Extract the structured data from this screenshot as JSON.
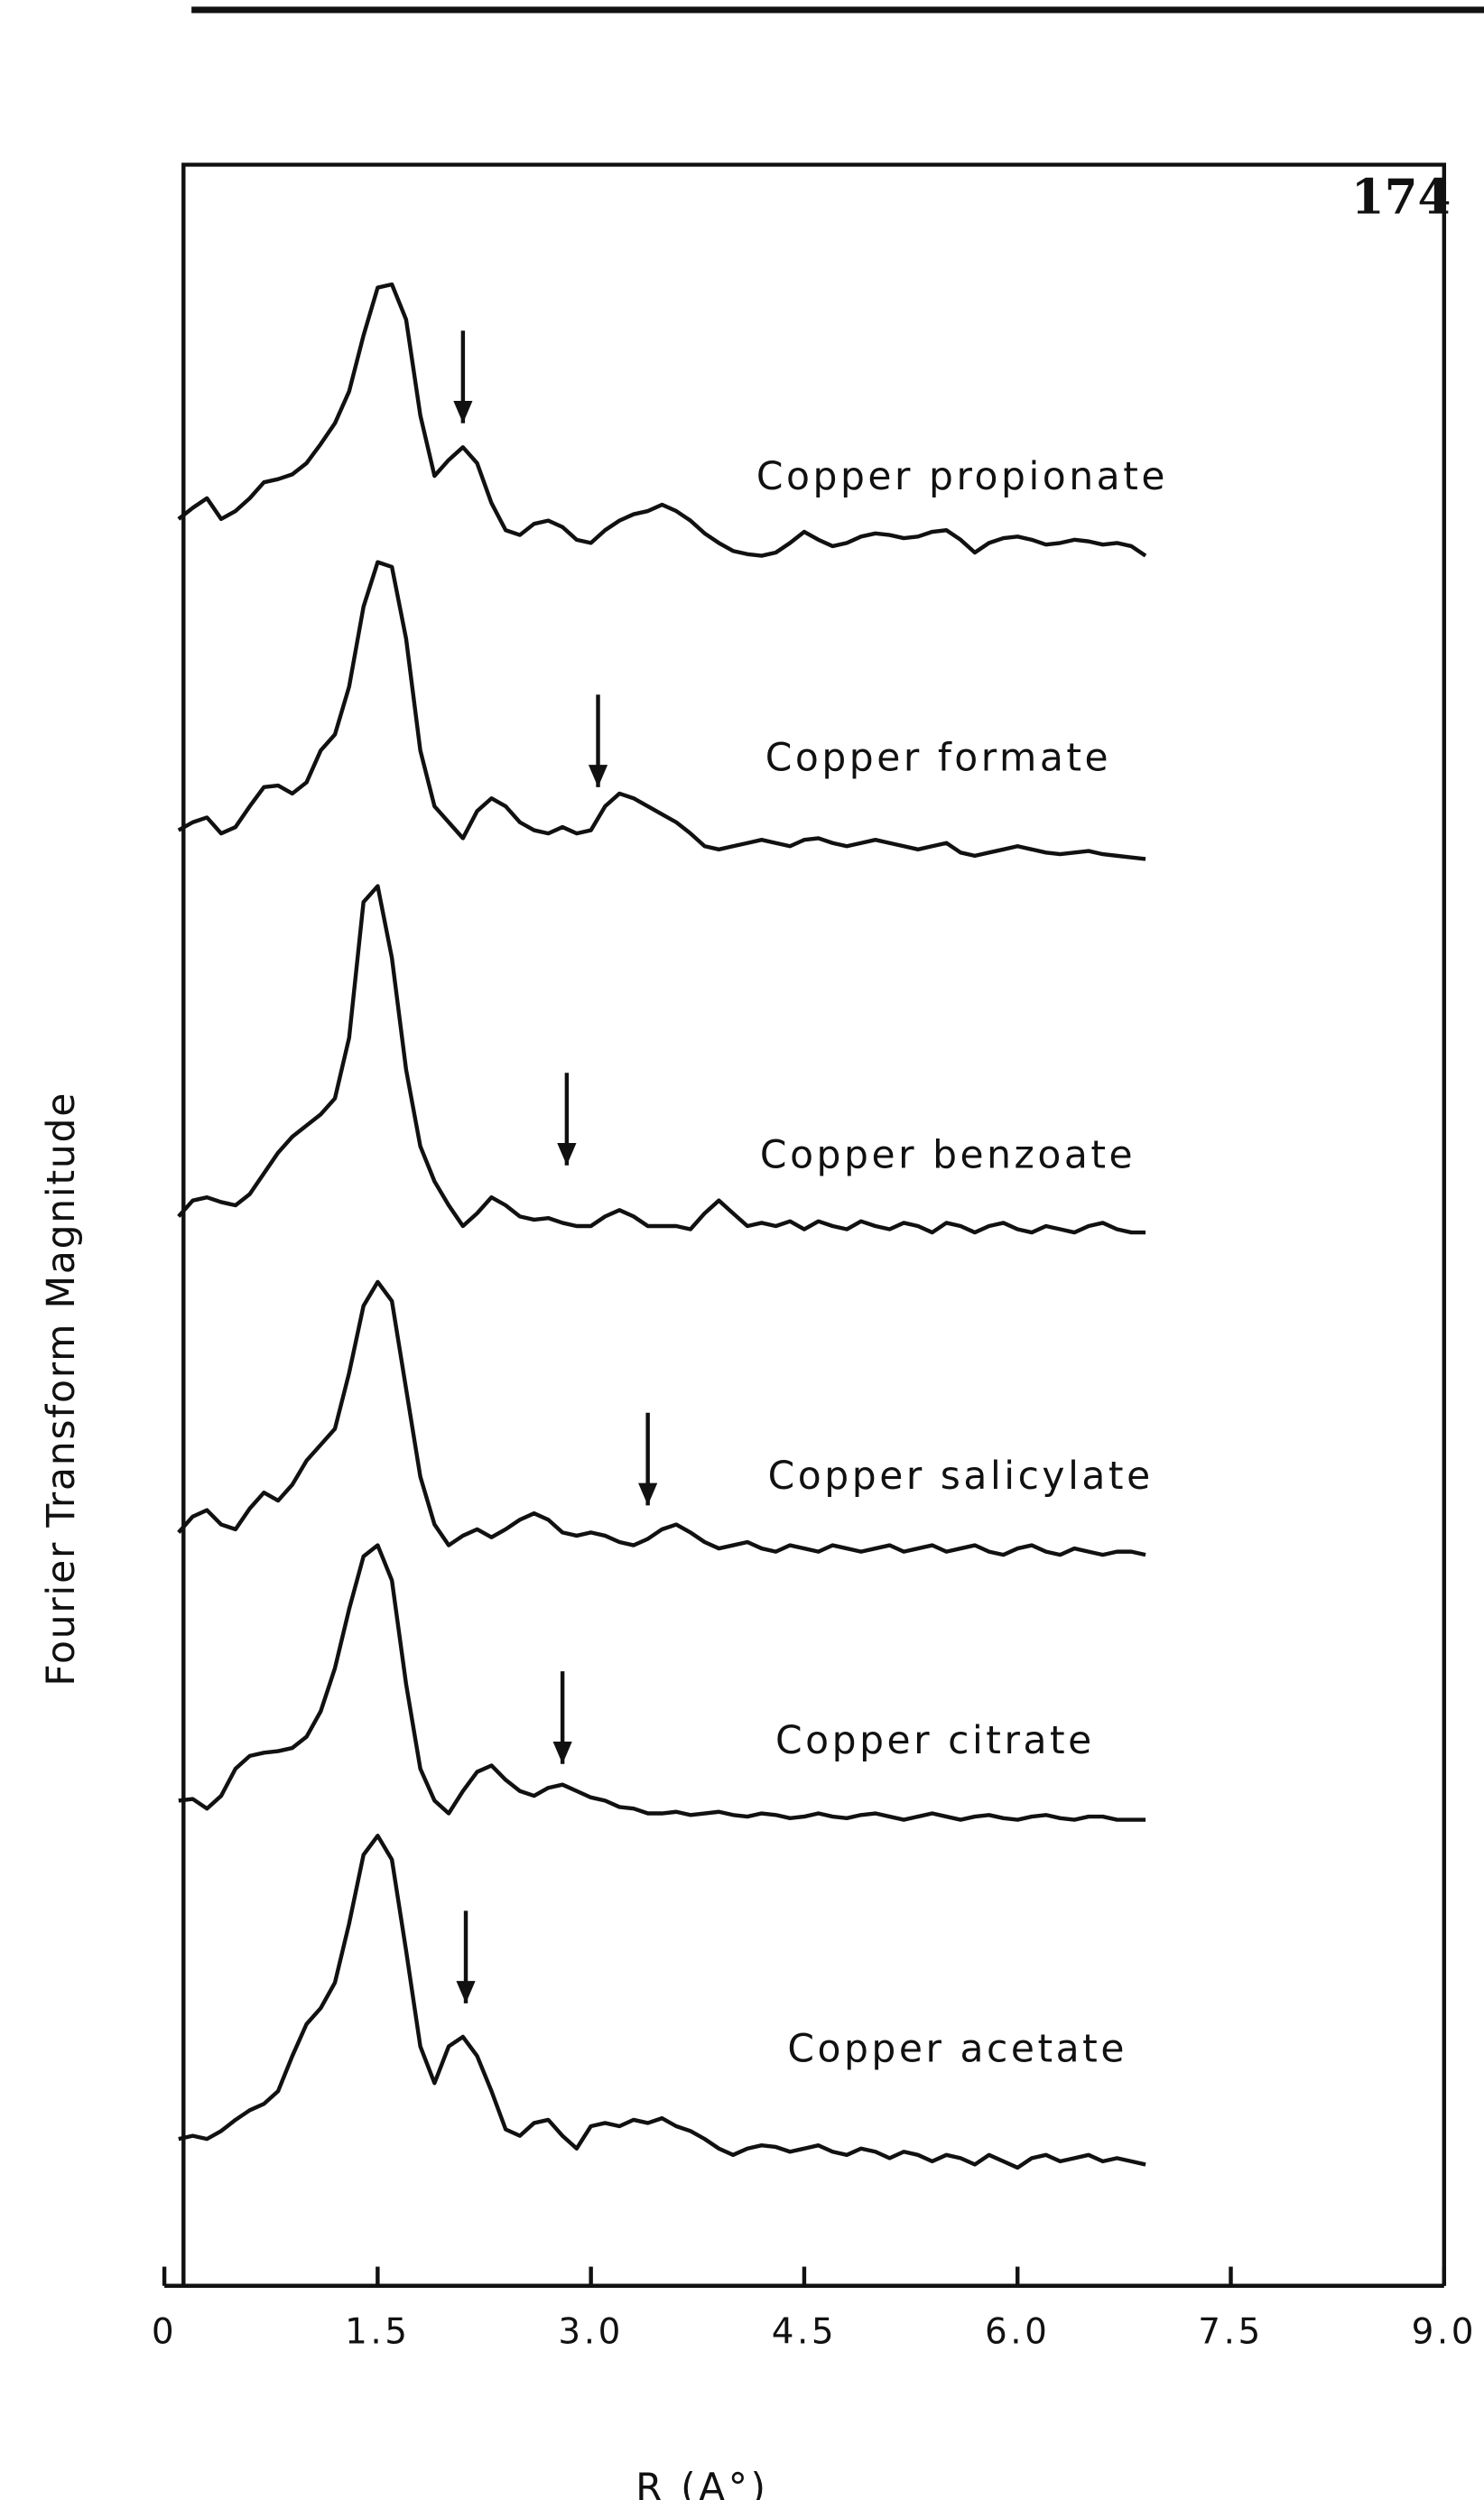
{
  "page_number": "174",
  "chart_data": {
    "type": "line",
    "ylabel": "Fourier Transform Magnitude",
    "xlabel": "R (A°)",
    "xlim": [
      0,
      9
    ],
    "ylim": [
      0,
      1329
    ],
    "xticks": [
      0,
      1.5,
      {
        "value": 3,
        "label": "3.0"
      },
      4.5,
      {
        "value": 6,
        "label": "6.0"
      },
      7.5,
      {
        "value": 9,
        "label": "9.0"
      }
    ],
    "color": "#111111",
    "x": [
      0.1,
      0.2,
      0.3,
      0.4,
      0.5,
      0.6,
      0.7,
      0.8,
      0.9,
      1.0,
      1.1,
      1.2,
      1.3,
      1.4,
      1.5,
      1.6,
      1.7,
      1.8,
      1.9,
      2.0,
      2.1,
      2.2,
      2.3,
      2.4,
      2.5,
      2.6,
      2.7,
      2.8,
      2.9,
      3.0,
      3.1,
      3.2,
      3.3,
      3.4,
      3.5,
      3.6,
      3.7,
      3.8,
      3.9,
      4.0,
      4.1,
      4.2,
      4.3,
      4.4,
      4.5,
      4.6,
      4.7,
      4.8,
      4.9,
      5.0,
      5.1,
      5.2,
      5.3,
      5.4,
      5.5,
      5.6,
      5.7,
      5.8,
      5.9,
      6.0,
      6.1,
      6.2,
      6.3,
      6.4,
      6.5,
      6.6,
      6.7,
      6.8,
      6.9
    ],
    "series": [
      {
        "name": "Copper propionate",
        "arrow_x": 2.1,
        "arrow_y": 1167,
        "values": [
          1107,
          1114,
          1120,
          1107,
          1112,
          1120,
          1130,
          1132,
          1135,
          1142,
          1154,
          1167,
          1187,
          1222,
          1252,
          1254,
          1232,
          1172,
          1134,
          1144,
          1152,
          1142,
          1117,
          1100,
          1097,
          1104,
          1106,
          1102,
          1094,
          1092,
          1100,
          1106,
          1110,
          1112,
          1116,
          1112,
          1106,
          1098,
          1092,
          1087,
          1085,
          1084,
          1086,
          1092,
          1099,
          1094,
          1090,
          1092,
          1096,
          1098,
          1097,
          1095,
          1096,
          1099,
          1100,
          1094,
          1086,
          1092,
          1095,
          1096,
          1094,
          1091,
          1092,
          1094,
          1093,
          1091,
          1092,
          1090,
          1084
        ]
      },
      {
        "name": "Copper formate",
        "arrow_x": 3.05,
        "arrow_y": 939,
        "values": [
          912,
          917,
          920,
          910,
          914,
          927,
          939,
          940,
          935,
          942,
          962,
          972,
          1002,
          1052,
          1080,
          1077,
          1032,
          962,
          927,
          917,
          907,
          924,
          932,
          927,
          917,
          912,
          910,
          914,
          910,
          912,
          927,
          935,
          932,
          927,
          922,
          917,
          910,
          902,
          900,
          902,
          904,
          906,
          904,
          902,
          906,
          907,
          904,
          902,
          904,
          906,
          904,
          902,
          900,
          902,
          904,
          898,
          896,
          898,
          900,
          902,
          900,
          898,
          897,
          898,
          899,
          897,
          896,
          895,
          894
        ]
      },
      {
        "name": "Copper benzoate",
        "arrow_x": 2.83,
        "arrow_y": 702,
        "values": [
          670,
          680,
          682,
          679,
          677,
          684,
          697,
          710,
          720,
          727,
          734,
          744,
          782,
          867,
          877,
          832,
          762,
          714,
          692,
          677,
          664,
          672,
          682,
          677,
          670,
          668,
          669,
          666,
          664,
          664,
          670,
          674,
          670,
          664,
          664,
          664,
          662,
          672,
          680,
          672,
          664,
          666,
          664,
          667,
          662,
          667,
          664,
          662,
          667,
          664,
          662,
          666,
          664,
          660,
          666,
          664,
          660,
          664,
          666,
          662,
          660,
          664,
          662,
          660,
          664,
          666,
          662,
          660,
          660
        ]
      },
      {
        "name": "Copper salicylate",
        "arrow_x": 3.4,
        "arrow_y": 489,
        "values": [
          472,
          482,
          486,
          477,
          474,
          487,
          497,
          492,
          502,
          517,
          527,
          537,
          572,
          614,
          629,
          617,
          562,
          507,
          477,
          464,
          470,
          474,
          469,
          474,
          480,
          484,
          480,
          472,
          470,
          472,
          470,
          466,
          464,
          468,
          474,
          477,
          472,
          466,
          462,
          464,
          466,
          462,
          460,
          464,
          462,
          460,
          464,
          462,
          460,
          462,
          464,
          460,
          462,
          464,
          460,
          462,
          464,
          460,
          458,
          462,
          464,
          460,
          458,
          462,
          460,
          458,
          460,
          460,
          458
        ]
      },
      {
        "name": "Copper citrate",
        "arrow_x": 2.8,
        "arrow_y": 327,
        "values": [
          304,
          305,
          299,
          307,
          324,
          332,
          334,
          335,
          337,
          344,
          360,
          387,
          424,
          457,
          464,
          442,
          377,
          324,
          304,
          296,
          310,
          322,
          326,
          317,
          310,
          307,
          312,
          314,
          310,
          306,
          304,
          300,
          299,
          296,
          296,
          297,
          295,
          296,
          297,
          295,
          294,
          296,
          295,
          293,
          294,
          296,
          294,
          293,
          295,
          296,
          294,
          292,
          294,
          296,
          294,
          292,
          294,
          295,
          293,
          292,
          294,
          295,
          293,
          292,
          294,
          294,
          292,
          292,
          292
        ]
      },
      {
        "name": "Copper acetate",
        "arrow_x": 2.12,
        "arrow_y": 177,
        "values": [
          92,
          94,
          92,
          97,
          104,
          110,
          114,
          122,
          144,
          164,
          174,
          190,
          227,
          270,
          282,
          267,
          210,
          150,
          127,
          150,
          156,
          144,
          122,
          98,
          94,
          102,
          104,
          94,
          86,
          100,
          102,
          100,
          104,
          102,
          105,
          100,
          97,
          92,
          86,
          82,
          86,
          88,
          87,
          84,
          86,
          88,
          84,
          82,
          86,
          84,
          80,
          84,
          82,
          78,
          82,
          80,
          76,
          82,
          78,
          74,
          80,
          82,
          78,
          80,
          82,
          78,
          80,
          78,
          76
        ]
      }
    ]
  }
}
